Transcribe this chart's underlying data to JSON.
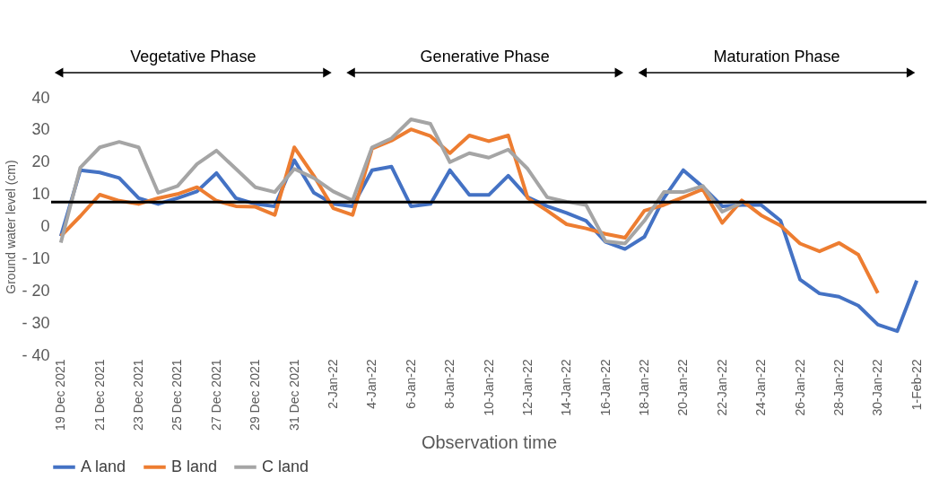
{
  "chart_data": {
    "type": "line",
    "xlabel": "Observation time",
    "ylabel": "Ground water level (cm)",
    "categories": [
      "19 Dec 2021",
      null,
      "21 Dec 2021",
      null,
      "23 Dec 2021",
      null,
      "25 Dec 2021",
      null,
      "27 Dec 2021",
      null,
      "29 Dec 2021",
      null,
      "31 Dec 2021",
      null,
      "2-Jan-22",
      null,
      "4-Jan-22",
      null,
      "6-Jan-22",
      null,
      "8-Jan-22",
      null,
      "10-Jan-22",
      null,
      "12-Jan-22",
      null,
      "14-Jan-22",
      null,
      "16-Jan-22",
      null,
      "18-Jan-22",
      null,
      "20-Jan-22",
      null,
      "22-Jan-22",
      null,
      "24-Jan-22",
      null,
      "26-Jan-22",
      null,
      "28-Jan-22",
      null,
      "30-Jan-22",
      null,
      "1-Feb-22"
    ],
    "series": [
      {
        "name": "A land",
        "color": "#4472c4",
        "values": [
          -3,
          17.5,
          16.8,
          15.1,
          8.8,
          7,
          8.8,
          10.9,
          16.6,
          8.8,
          7,
          6.3,
          20.6,
          10.5,
          7,
          6.3,
          17.5,
          18.6,
          6.3,
          7,
          17.5,
          9.8,
          9.8,
          15.8,
          9.1,
          6.3,
          4.2,
          1.8,
          -4.8,
          -7,
          -3.2,
          8.8,
          17.5,
          12.3,
          6.3,
          6.7,
          6.7,
          1.8,
          -16.5,
          -20.8,
          -21.8,
          -24.6,
          -30.5,
          -32.5,
          -16.8
        ]
      },
      {
        "name": "B land",
        "color": "#ed7d31",
        "values": [
          -3,
          3.2,
          9.9,
          8,
          7,
          8.8,
          10.1,
          12.2,
          8,
          6.3,
          6.1,
          3.6,
          24.6,
          15.8,
          5.7,
          3.6,
          24.2,
          26.7,
          30.2,
          28.1,
          22.8,
          28.3,
          26.5,
          28.3,
          8.8,
          4.9,
          0.7,
          -0.6,
          -2.3,
          -3.5,
          4.9,
          6.7,
          9.1,
          11.6,
          1.1,
          8.1,
          3.5,
          0.3,
          -5.3,
          -7.7,
          -5.1,
          -8.8,
          -20.7,
          null,
          null
        ]
      },
      {
        "name": "C land",
        "color": "#a5a5a5",
        "values": [
          -5,
          18.3,
          24.6,
          26.3,
          24.6,
          10.5,
          12.6,
          19.4,
          23.6,
          17.9,
          12.2,
          10.7,
          17.9,
          15.1,
          10.9,
          8.1,
          24.6,
          27.4,
          33.3,
          31.9,
          20,
          22.8,
          21.4,
          23.9,
          17.9,
          9.1,
          7.7,
          6.7,
          -4.6,
          -5.3,
          1.8,
          10.7,
          10.7,
          12.6,
          4.6,
          7.4,
          null,
          null,
          null,
          null,
          null,
          null,
          null,
          null,
          null
        ]
      }
    ],
    "ylim": [
      -40,
      40
    ],
    "yticks": [
      40,
      30,
      20,
      10,
      0,
      {
        "value": -10,
        "label": "- 10"
      },
      {
        "value": -20,
        "label": "- 20"
      },
      {
        "value": -30,
        "label": "- 30"
      },
      {
        "value": -40,
        "label": "- 40"
      }
    ],
    "ref_lines": [
      {
        "axis": "y",
        "value": 7.6,
        "color": "#000000"
      }
    ],
    "annotations": [
      "Vegetative Phase",
      "Generative Phase",
      "Maturation Phase"
    ],
    "grid": false,
    "legend": "bottom",
    "marker": "none",
    "line_style": "solid"
  }
}
